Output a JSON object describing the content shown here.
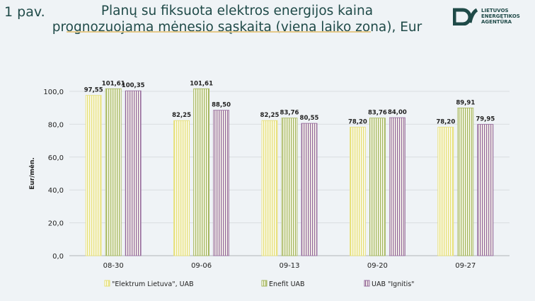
{
  "figure_label": "1 pav.",
  "logo": {
    "line1": "LIETUVOS",
    "line2": "ENERGETIKOS",
    "line3": "AGENTŪRA"
  },
  "chart_data": {
    "type": "bar",
    "title": "Planų su fiksuota elektros energijos kaina prognozuojama mėnesio sąskaita (viena laiko zona), Eur",
    "ylabel": "Eur/mėn.",
    "xlabel": "",
    "ylim": [
      0,
      100
    ],
    "yticks": [
      "0,0",
      "20,0",
      "40,0",
      "60,0",
      "80,0",
      "100,0"
    ],
    "categories": [
      "08-30",
      "09-06",
      "09-13",
      "09-20",
      "09-27"
    ],
    "series": [
      {
        "name": "\"Elektrum Lietuva\", UAB",
        "color": "#e6df76",
        "values": [
          97.55,
          82.25,
          82.25,
          78.2,
          78.2
        ],
        "labels": [
          "97,55",
          "82,25",
          "82,25",
          "78,20",
          "78,20"
        ]
      },
      {
        "name": "Enefit UAB",
        "color": "#a3b55c",
        "values": [
          101.61,
          101.61,
          83.76,
          83.76,
          89.91
        ],
        "labels": [
          "101,61",
          "101,61",
          "83,76",
          "83,76",
          "89,91"
        ]
      },
      {
        "name": "UAB \"Ignitis\"",
        "color": "#94699b",
        "values": [
          100.35,
          88.5,
          80.55,
          84.0,
          79.95
        ],
        "labels": [
          "100,35",
          "88,50",
          "80,55",
          "84,00",
          "79,95"
        ]
      }
    ],
    "legend": "bottom",
    "grid": true
  }
}
